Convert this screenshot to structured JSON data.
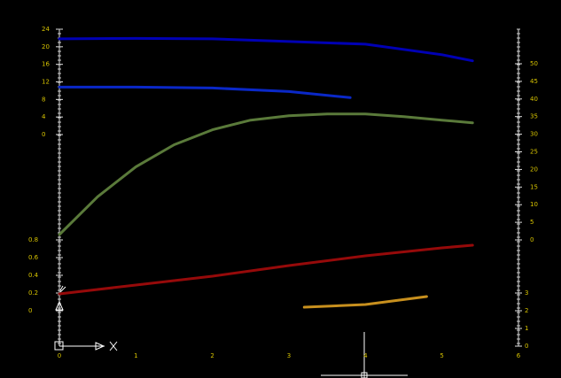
{
  "chart_data": {
    "type": "line",
    "xlim": [
      0,
      6
    ],
    "xticks": [
      0,
      1,
      2,
      3,
      4,
      5,
      6
    ],
    "axes": [
      {
        "ylim": [
          0,
          24
        ],
        "yticks": [
          0,
          4,
          8,
          12,
          16,
          20,
          24
        ]
      },
      {
        "ylim": [
          0,
          0.8
        ],
        "yticks": [
          0,
          0.2,
          0.4,
          0.6,
          0.8
        ]
      },
      {
        "ylim": [
          0,
          50
        ],
        "yticks": [
          0,
          5,
          10,
          15,
          20,
          25,
          30,
          35,
          40,
          45,
          50
        ]
      },
      {
        "ylim": [
          0,
          3
        ],
        "yticks": [
          0,
          1,
          2,
          3
        ]
      }
    ],
    "grid": true,
    "series": [
      {
        "color": "#0000b4",
        "axis": 0,
        "x": [
          0,
          1,
          2,
          3,
          4,
          5,
          5.4
        ],
        "values": [
          21.8,
          21.9,
          21.8,
          21.2,
          20.6,
          18.2,
          16.8
        ]
      },
      {
        "color": "#0a28c8",
        "axis": 0,
        "x": [
          0,
          1,
          2,
          3,
          3.8
        ],
        "values": [
          10.8,
          10.8,
          10.6,
          9.8,
          8.4
        ]
      },
      {
        "color": "#5a7a3a",
        "axis": 2,
        "x": [
          0,
          0.5,
          1,
          1.5,
          2,
          2.5,
          3,
          3.5,
          4,
          4.5,
          5,
          5.4
        ],
        "values": [
          1.5,
          12.25,
          20.75,
          27,
          31.25,
          34,
          35.25,
          35.75,
          35.75,
          35,
          34,
          33.25
        ]
      },
      {
        "color": "#960a0a",
        "axis": 1,
        "x": [
          0,
          1,
          2,
          3,
          4,
          5,
          5.4
        ],
        "values": [
          0.19,
          0.29,
          0.39,
          0.51,
          0.62,
          0.71,
          0.74
        ]
      },
      {
        "color": "#c8901e",
        "axis": 3,
        "x": [
          3.2,
          4,
          4.8
        ],
        "values": [
          2.2,
          2.35,
          2.8
        ]
      }
    ]
  }
}
